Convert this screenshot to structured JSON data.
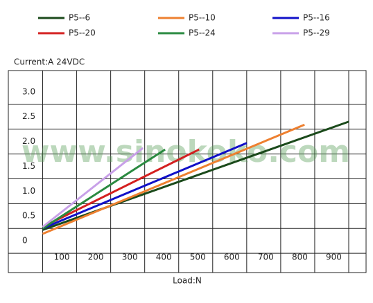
{
  "chart_data": {
    "type": "line",
    "y_label": "Current:A  24VDC",
    "x_label": "Load:N",
    "watermark": "www.sinokoko.com",
    "xlim": [
      -101,
      951
    ],
    "ylim": [
      -0.64,
      3.43
    ],
    "xticks": [
      100,
      200,
      300,
      400,
      500,
      600,
      700,
      800,
      900
    ],
    "yticks": [
      0,
      0.5,
      {
        "value": 1,
        "label": "1.0"
      },
      1.5,
      {
        "value": 2,
        "label": "2.0"
      },
      2.5,
      {
        "value": 3,
        "label": "3.0"
      }
    ],
    "grid": true,
    "series": [
      {
        "name": "P5--6",
        "color": "#1b4a1b",
        "x": [
          0,
          900
        ],
        "values": [
          0.22,
          2.4
        ]
      },
      {
        "name": "P5--10",
        "color": "#ee8030",
        "x": [
          0,
          770
        ],
        "values": [
          0.14,
          2.34
        ]
      },
      {
        "name": "P5--16",
        "color": "#1010c8",
        "x": [
          0,
          600
        ],
        "values": [
          0.25,
          1.97
        ]
      },
      {
        "name": "P5--20",
        "color": "#d42020",
        "x": [
          0,
          460
        ],
        "values": [
          0.28,
          1.84
        ]
      },
      {
        "name": "P5--24",
        "color": "#2a8a40",
        "x": [
          0,
          360
        ],
        "values": [
          0.25,
          1.84
        ]
      },
      {
        "name": "P5--29",
        "color": "#c8a0e8",
        "x": [
          0,
          295
        ],
        "values": [
          0.28,
          1.87
        ]
      }
    ]
  }
}
